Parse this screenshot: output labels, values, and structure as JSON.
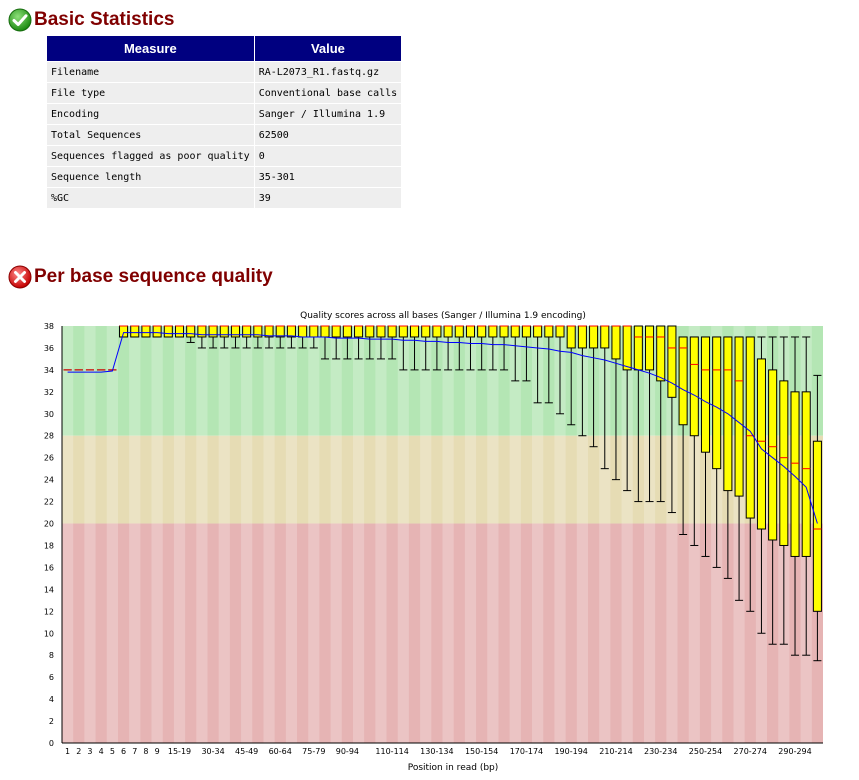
{
  "basic_stats": {
    "title": "Basic Statistics",
    "status": "pass",
    "status_icon": "check-circle-icon",
    "headers": [
      "Measure",
      "Value"
    ],
    "rows": [
      [
        "Filename",
        "RA-L2073_R1.fastq.gz"
      ],
      [
        "File type",
        "Conventional base calls"
      ],
      [
        "Encoding",
        "Sanger / Illumina 1.9"
      ],
      [
        "Total Sequences",
        "62500"
      ],
      [
        "Sequences flagged as poor quality",
        "0"
      ],
      [
        "Sequence length",
        "35-301"
      ],
      [
        "%GC",
        "39"
      ]
    ]
  },
  "per_base_quality": {
    "title": "Per base sequence quality",
    "status": "fail",
    "status_icon": "error-circle-icon"
  },
  "chart_data": {
    "type": "boxplot",
    "title": "Quality scores across all bases (Sanger / Illumina 1.9 encoding)",
    "xlabel": "Position in read (bp)",
    "ylabel": "",
    "ylim": [
      0,
      38
    ],
    "yticks": [
      0,
      2,
      4,
      6,
      8,
      10,
      12,
      14,
      16,
      18,
      20,
      22,
      24,
      26,
      28,
      30,
      32,
      34,
      36,
      38
    ],
    "categories": [
      "1",
      "2",
      "3",
      "4",
      "5",
      "6",
      "7",
      "8",
      "9",
      "10-14",
      "15-19",
      "20-24",
      "25-29",
      "30-34",
      "35-39",
      "40-44",
      "45-49",
      "50-54",
      "55-59",
      "60-64",
      "65-69",
      "70-74",
      "75-79",
      "80-84",
      "85-89",
      "90-94",
      "95-99",
      "100-104",
      "105-109",
      "110-114",
      "115-119",
      "120-124",
      "125-129",
      "130-134",
      "135-139",
      "140-144",
      "145-149",
      "150-154",
      "155-159",
      "160-164",
      "165-169",
      "170-174",
      "175-179",
      "180-184",
      "185-189",
      "190-194",
      "195-199",
      "200-204",
      "205-209",
      "210-214",
      "215-219",
      "220-224",
      "225-229",
      "230-234",
      "235-239",
      "240-244",
      "245-249",
      "250-254",
      "255-259",
      "260-264",
      "265-269",
      "270-274",
      "275-279",
      "280-284",
      "285-289",
      "290-294",
      "295-299",
      "300-301"
    ],
    "shown_tick_labels": [
      "1",
      "2",
      "3",
      "4",
      "5",
      "6",
      "7",
      "8",
      "9",
      "15-19",
      "30-34",
      "45-49",
      "60-64",
      "75-79",
      "90-94",
      "110-114",
      "130-134",
      "150-154",
      "170-174",
      "190-194",
      "210-214",
      "230-234",
      "250-254",
      "270-274",
      "290-294"
    ],
    "bands": [
      {
        "from": 28,
        "to": 38,
        "color": "#b4e6b4"
      },
      {
        "from": 20,
        "to": 28,
        "color": "#e6dcb4"
      },
      {
        "from": 0,
        "to": 20,
        "color": "#e6b4b4"
      }
    ],
    "box_color": "#ffff00",
    "median_color": "#ff0000",
    "mean_color": "#0000ff",
    "boxes": {
      "q1": [
        34,
        34,
        34,
        34,
        34,
        37,
        37,
        37,
        37,
        37,
        37,
        37,
        37,
        37,
        37,
        37,
        37,
        37,
        37,
        37,
        37,
        37,
        37,
        37,
        37,
        37,
        37,
        37,
        37,
        37,
        37,
        37,
        37,
        37,
        37,
        37,
        37,
        37,
        37,
        37,
        37,
        37,
        37,
        37,
        37,
        36,
        36,
        36,
        36,
        35,
        34,
        34,
        34,
        33,
        31.5,
        29,
        28,
        26.5,
        25,
        23,
        22.5,
        20.5,
        19.5,
        18.5,
        18,
        17,
        17,
        12
      ],
      "median": [
        34,
        34,
        34,
        34,
        34,
        38,
        38,
        38,
        38,
        38,
        38,
        38,
        38,
        38,
        38,
        38,
        38,
        38,
        38,
        38,
        38,
        38,
        38,
        38,
        38,
        38,
        38,
        38,
        38,
        38,
        38,
        38,
        38,
        38,
        38,
        38,
        38,
        38,
        38,
        38,
        38,
        38,
        38,
        38,
        38,
        38,
        38,
        38,
        38,
        38,
        38,
        37,
        37,
        37,
        36,
        36,
        34.5,
        34,
        34,
        34,
        33,
        28,
        27.5,
        27,
        26,
        25.5,
        25,
        19.5
      ],
      "q3": [
        34,
        34,
        34,
        34,
        34,
        38,
        38,
        38,
        38,
        38,
        38,
        38,
        38,
        38,
        38,
        38,
        38,
        38,
        38,
        38,
        38,
        38,
        38,
        38,
        38,
        38,
        38,
        38,
        38,
        38,
        38,
        38,
        38,
        38,
        38,
        38,
        38,
        38,
        38,
        38,
        38,
        38,
        38,
        38,
        38,
        38,
        38,
        38,
        38,
        38,
        38,
        38,
        38,
        38,
        38,
        37,
        37,
        37,
        37,
        37,
        37,
        37,
        35,
        34,
        33,
        32,
        32,
        27.5
      ],
      "lower": [
        34,
        34,
        34,
        34,
        34,
        37,
        37,
        37,
        37,
        37,
        37,
        36.5,
        36,
        36,
        36,
        36,
        36,
        36,
        36,
        36,
        36,
        36,
        36,
        35,
        35,
        35,
        35,
        35,
        35,
        35,
        34,
        34,
        34,
        34,
        34,
        34,
        34,
        34,
        34,
        34,
        33,
        33,
        31,
        31,
        30,
        29,
        28,
        27,
        25,
        24,
        23,
        22,
        22,
        22,
        21,
        19,
        18,
        17,
        16,
        15,
        13,
        12,
        10,
        9,
        9,
        8,
        8,
        7.5
      ],
      "upper": [
        34,
        34,
        34,
        34,
        34,
        38,
        38,
        38,
        38,
        38,
        38,
        38,
        38,
        38,
        38,
        38,
        38,
        38,
        38,
        38,
        38,
        38,
        38,
        38,
        38,
        38,
        38,
        38,
        38,
        38,
        38,
        38,
        38,
        38,
        38,
        38,
        38,
        38,
        38,
        38,
        38,
        38,
        38,
        38,
        38,
        38,
        38,
        38,
        38,
        38,
        38,
        38,
        38,
        38,
        38,
        37,
        37,
        37,
        37,
        37,
        37,
        37,
        37,
        37,
        37,
        37,
        37,
        33.5
      ]
    },
    "mean": [
      33.8,
      33.8,
      33.8,
      33.8,
      33.9,
      37.4,
      37.4,
      37.4,
      37.4,
      37.3,
      37.3,
      37.3,
      37.2,
      37.2,
      37.2,
      37.2,
      37.2,
      37.2,
      37.1,
      37.1,
      37.1,
      37.0,
      37.0,
      37.0,
      36.9,
      36.9,
      36.9,
      36.8,
      36.8,
      36.8,
      36.7,
      36.7,
      36.6,
      36.6,
      36.5,
      36.5,
      36.4,
      36.4,
      36.3,
      36.3,
      36.2,
      36.1,
      36.0,
      35.9,
      35.7,
      35.6,
      35.3,
      35.1,
      34.9,
      34.6,
      34.3,
      34.0,
      33.7,
      33.3,
      32.8,
      32.2,
      31.7,
      31.1,
      30.6,
      30.0,
      29.2,
      28.4,
      26.8,
      26.0,
      25.2,
      24.3,
      23.3,
      20.0
    ]
  }
}
